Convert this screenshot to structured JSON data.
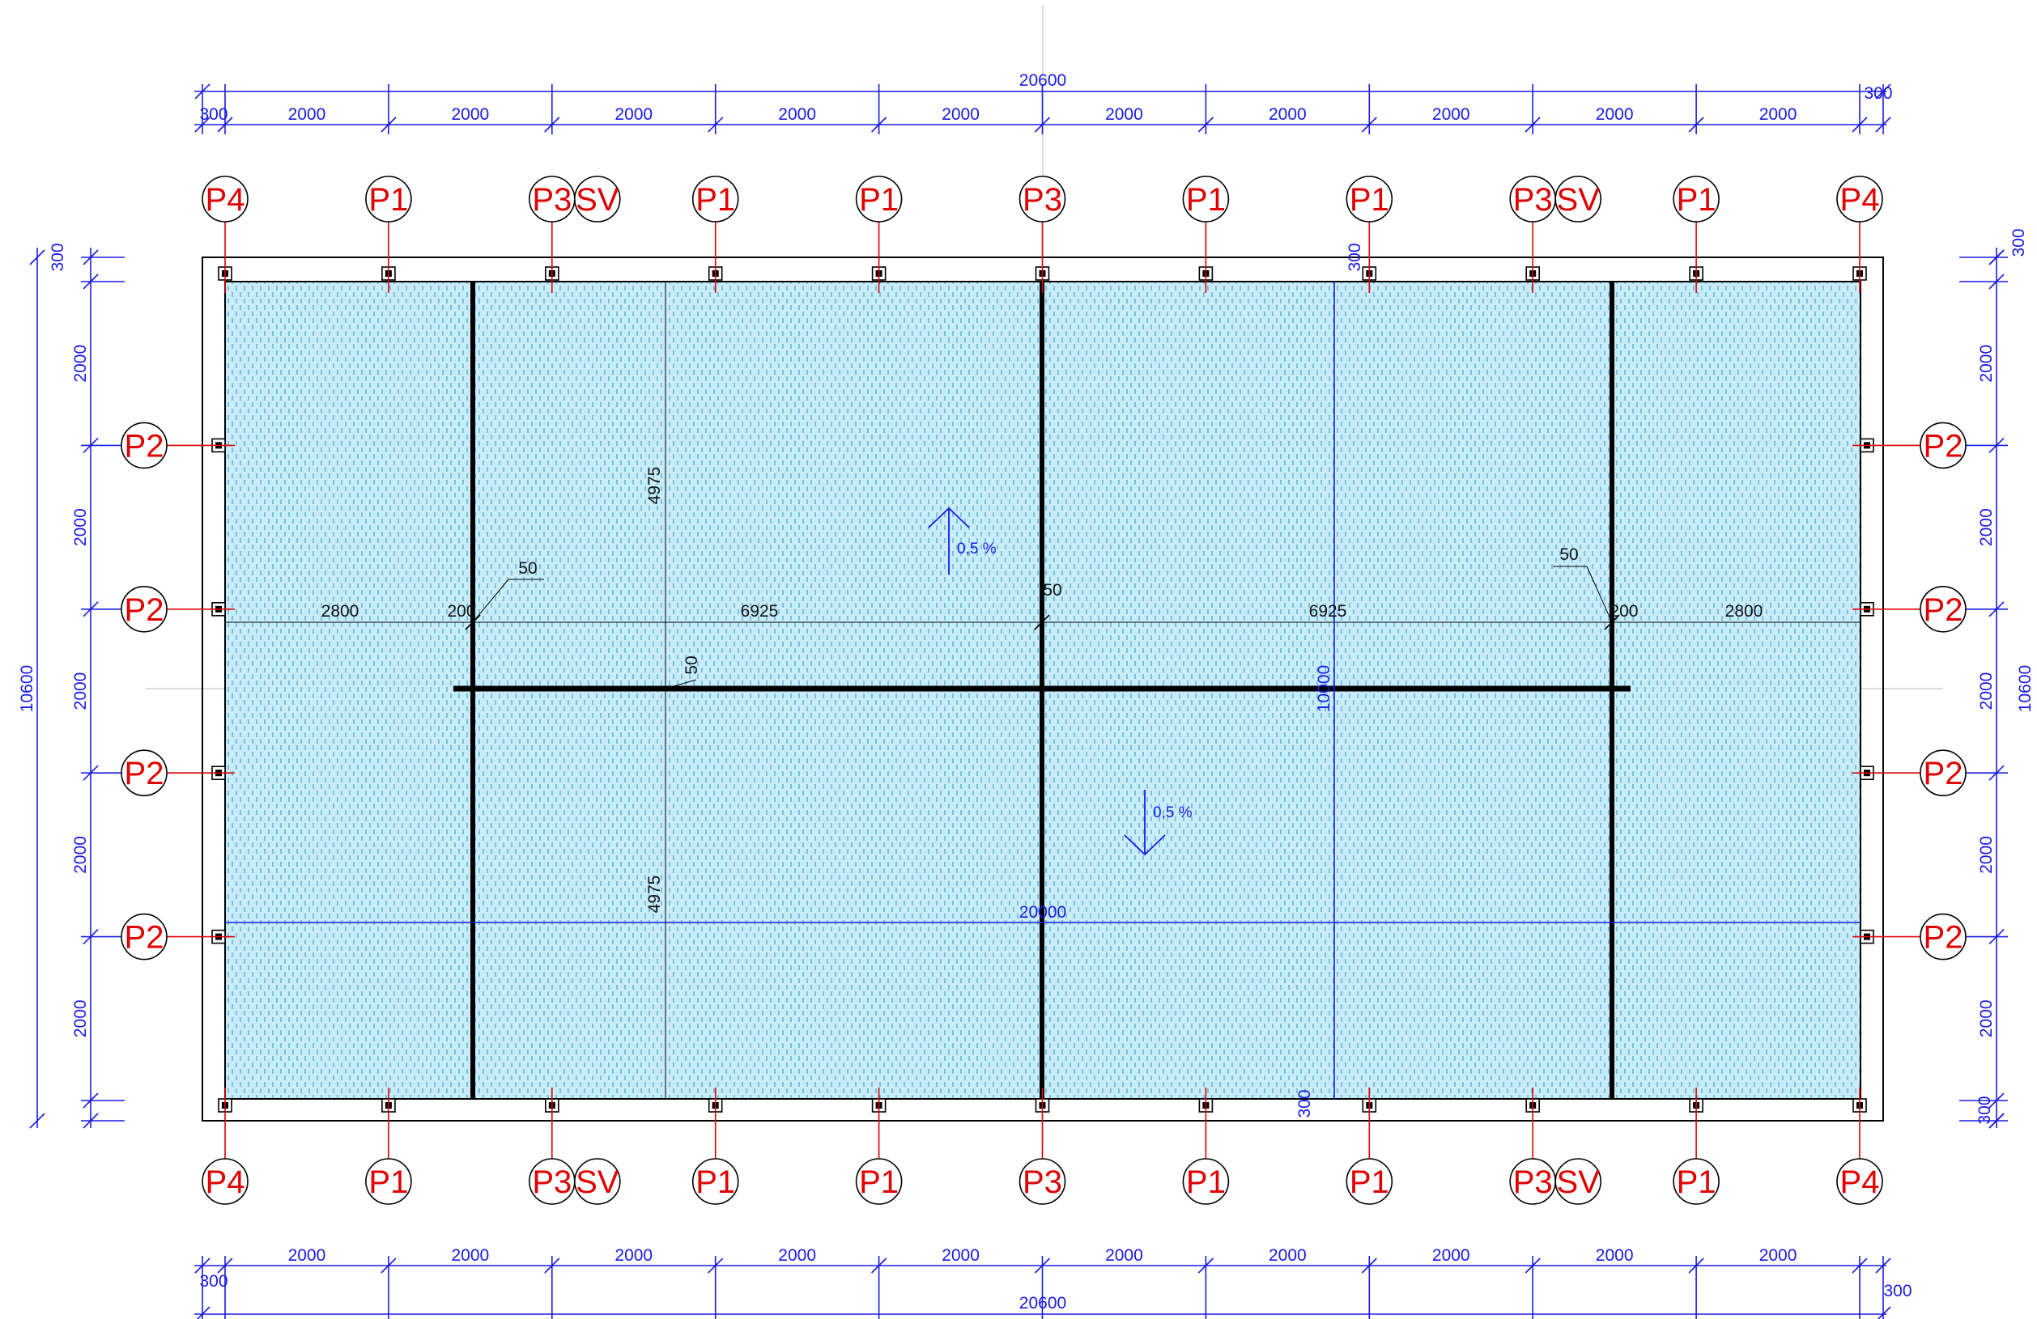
{
  "pile_tags": {
    "top": [
      "P4",
      "P1",
      "P3",
      "P1",
      "P1",
      "P3",
      "P1",
      "P1",
      "P3",
      "P1",
      "P4"
    ],
    "bottom": [
      "P4",
      "P1",
      "P3",
      "P1",
      "P1",
      "P3",
      "P1",
      "P1",
      "P3",
      "P1",
      "P4"
    ],
    "left": [
      "P2",
      "P2",
      "P2",
      "P2"
    ],
    "right": [
      "P2",
      "P2",
      "P2",
      "P2"
    ],
    "sv": "SV"
  },
  "dimensions": {
    "overall_length": "20600",
    "edge_offset": "300",
    "bay": "2000",
    "overall_width": "10600",
    "inner_length": "20000",
    "inner_width": "10000",
    "half_width": "4975",
    "outer_bay": "2800",
    "joint_200": "200",
    "joint_50": "50",
    "inner_span": "6925"
  },
  "slopes": [
    "0,5 %",
    "0,5 %"
  ],
  "colors": {
    "dimension": "#1a1ae6",
    "pile_tag": "#e00000",
    "slab_fill": "#bfe6f5",
    "slab_hatch": "#3aa9d8",
    "joint": "#000000"
  }
}
